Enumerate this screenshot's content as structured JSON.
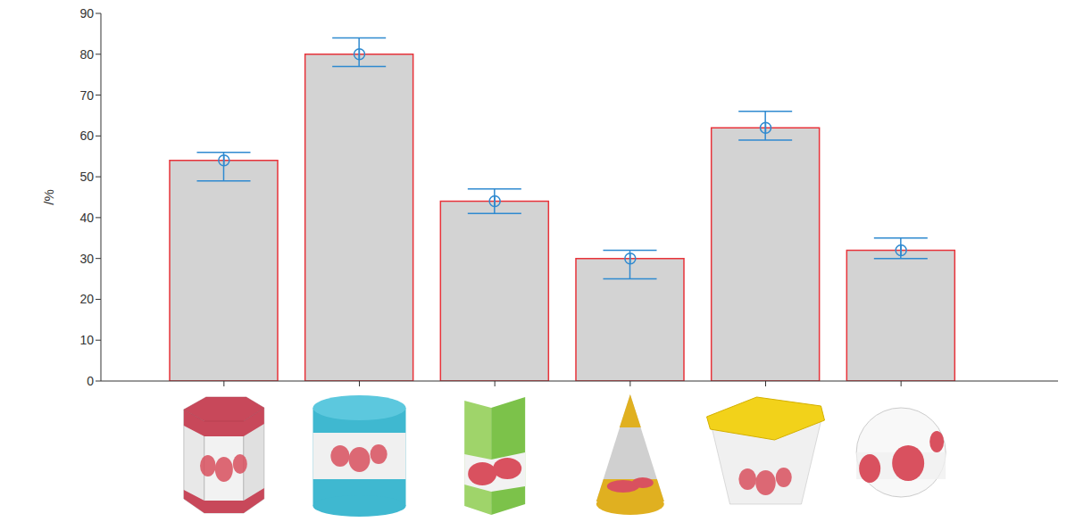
{
  "chart_data": {
    "type": "bar",
    "categories": [
      null,
      null,
      null,
      null,
      null,
      null
    ],
    "values": [
      54,
      80,
      44,
      30,
      62,
      32
    ],
    "error": [
      [
        5,
        2
      ],
      [
        3,
        4
      ],
      [
        3,
        3
      ],
      [
        5,
        2
      ],
      [
        3,
        4
      ],
      [
        2,
        3
      ]
    ],
    "color": "#d3d3d3",
    "marker": "circle",
    "ylabel": "/%",
    "ylim": [
      0,
      90
    ],
    "yticks": [
      0,
      10,
      20,
      30,
      40,
      50,
      60,
      70,
      80,
      90
    ],
    "grid": false
  }
}
